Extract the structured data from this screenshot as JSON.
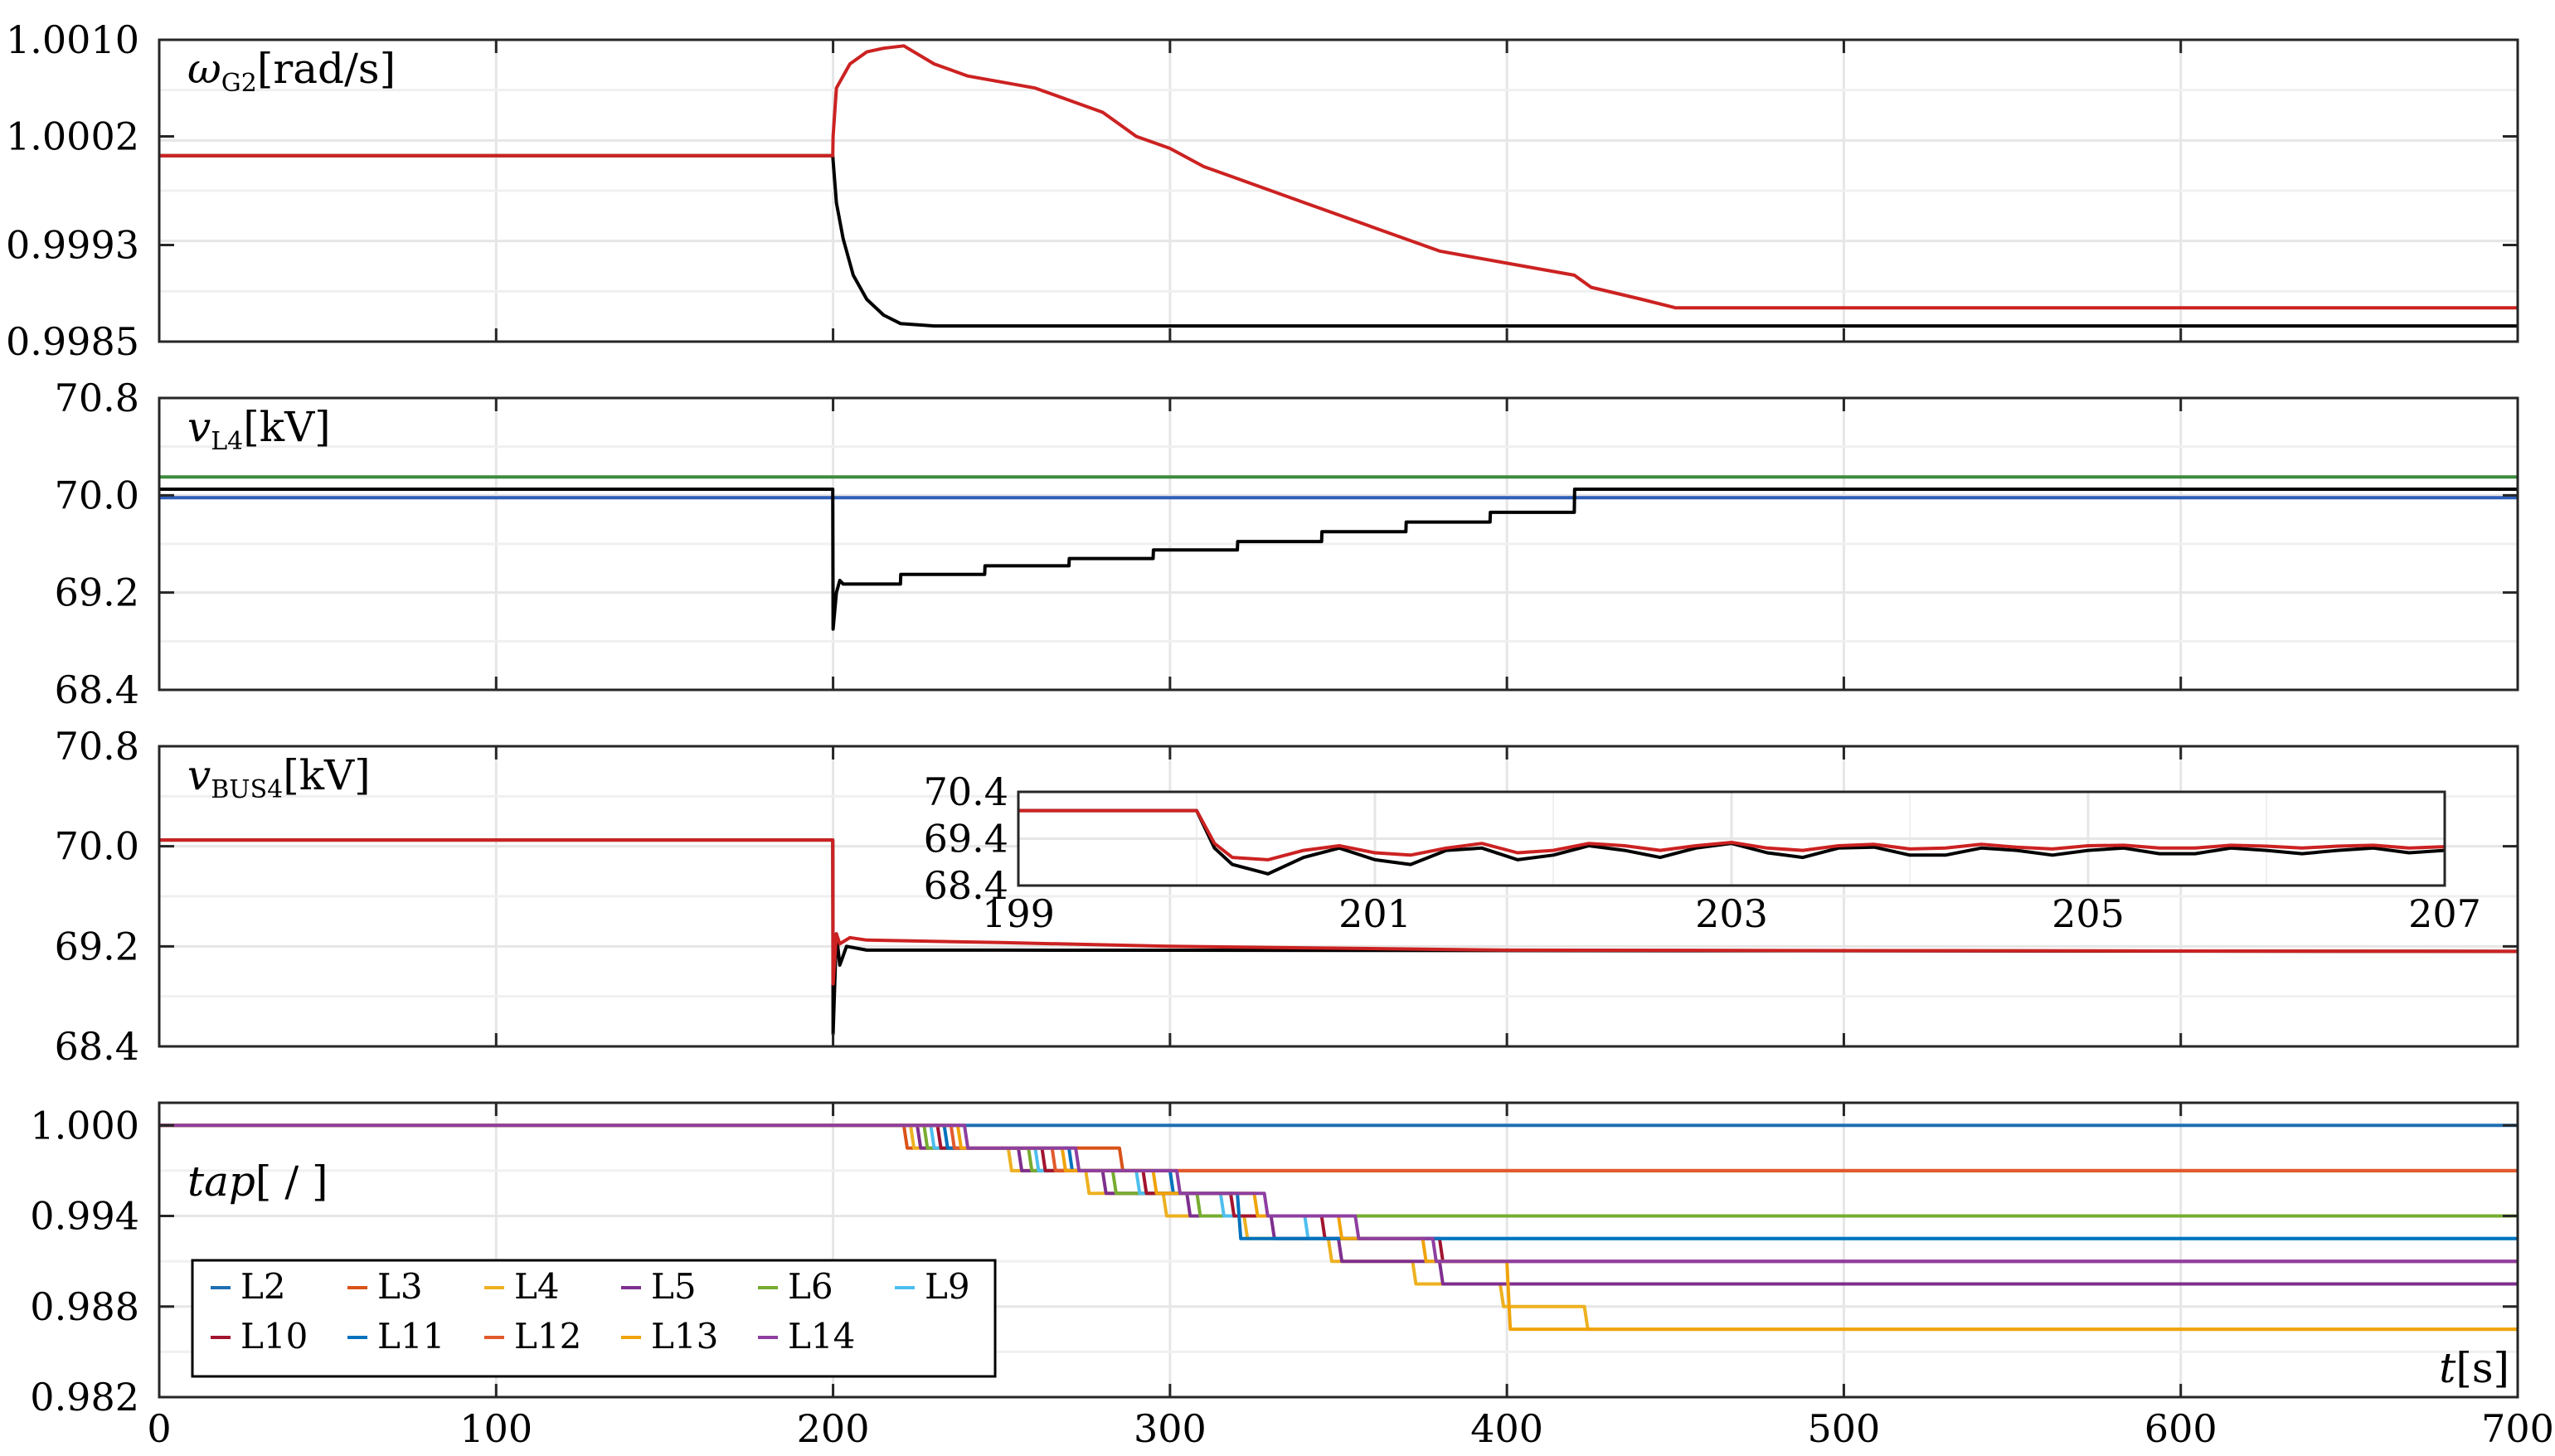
{
  "chart_data": [
    {
      "type": "line",
      "ylabel": "ω",
      "ylabel_sub": "G2",
      "ylabel_unit": "[rad/s]",
      "xlim": [
        0,
        700
      ],
      "ylim": [
        0.9985,
        1.001
      ],
      "yticks": [
        "1.0010",
        "1.0002",
        "0.9993",
        "0.9985"
      ],
      "ytick_values": [
        1.001,
        1.0002,
        0.9993,
        0.9985
      ],
      "grid": true,
      "series": [
        {
          "color": "#000000",
          "x": [
            0,
            199.9,
            200,
            201,
            203,
            206,
            210,
            215,
            220,
            230,
            700
          ],
          "y": [
            1.00004,
            1.00004,
            1.0,
            0.99965,
            0.99935,
            0.99905,
            0.99885,
            0.99872,
            0.99865,
            0.99863,
            0.99863
          ]
        },
        {
          "color": "#cc2222",
          "x": [
            0,
            199.9,
            200,
            201,
            205,
            210,
            215,
            221,
            230,
            240,
            260,
            280,
            285,
            290,
            300,
            310,
            320,
            330,
            340,
            350,
            360,
            370,
            380,
            400,
            420,
            425,
            440,
            450,
            500,
            700
          ],
          "y": [
            1.00004,
            1.00004,
            1.0002,
            1.0006,
            1.0008,
            1.0009,
            1.00093,
            1.00095,
            1.0008,
            1.0007,
            1.0006,
            1.0004,
            1.0003,
            1.0002,
            1.0001,
            0.99995,
            0.99985,
            0.99975,
            0.99965,
            0.99955,
            0.99945,
            0.99935,
            0.99925,
            0.99915,
            0.99905,
            0.99895,
            0.99885,
            0.99878,
            0.99878,
            0.99878
          ]
        }
      ]
    },
    {
      "type": "line",
      "ylabel": "v",
      "ylabel_sub": "L4",
      "ylabel_unit": "[kV]",
      "xlim": [
        0,
        700
      ],
      "ylim": [
        68.4,
        70.8
      ],
      "yticks": [
        "70.8",
        "70.0",
        "69.2",
        "68.4"
      ],
      "ytick_values": [
        70.8,
        70.0,
        69.2,
        68.4
      ],
      "grid": true,
      "series": [
        {
          "color": "#3d8a3d",
          "x": [
            0,
            700
          ],
          "y": [
            70.15,
            70.15
          ]
        },
        {
          "color": "#2f5fb8",
          "x": [
            0,
            700
          ],
          "y": [
            69.98,
            69.98
          ]
        },
        {
          "color": "#000000",
          "x": [
            0,
            199.9,
            200,
            201,
            202,
            203,
            205,
            220,
            220.1,
            245,
            245.1,
            270,
            270.1,
            295,
            295.1,
            320,
            320.1,
            345,
            345.1,
            370,
            370.1,
            395,
            395.1,
            420,
            420.1,
            700
          ],
          "y": [
            70.05,
            70.05,
            68.9,
            69.2,
            69.3,
            69.27,
            69.27,
            69.27,
            69.35,
            69.35,
            69.42,
            69.42,
            69.48,
            69.48,
            69.55,
            69.55,
            69.62,
            69.62,
            69.7,
            69.7,
            69.78,
            69.78,
            69.86,
            69.86,
            70.05,
            70.05
          ]
        }
      ]
    },
    {
      "type": "line",
      "ylabel": "v",
      "ylabel_sub": "BUS4",
      "ylabel_unit": "[kV]",
      "xlim": [
        0,
        700
      ],
      "ylim": [
        68.4,
        70.8
      ],
      "yticks": [
        "70.8",
        "70.0",
        "69.2",
        "68.4"
      ],
      "ytick_values": [
        70.8,
        70.0,
        69.2,
        68.4
      ],
      "grid": true,
      "series": [
        {
          "color": "#000000",
          "x": [
            0,
            199.9,
            200,
            201,
            202,
            204,
            210,
            250,
            700
          ],
          "y": [
            70.05,
            70.05,
            68.5,
            69.3,
            69.05,
            69.2,
            69.17,
            69.17,
            69.16
          ]
        },
        {
          "color": "#cc2222",
          "x": [
            0,
            199.9,
            200,
            201,
            202,
            205,
            210,
            250,
            300,
            400,
            700
          ],
          "y": [
            70.05,
            70.05,
            68.9,
            69.3,
            69.22,
            69.27,
            69.25,
            69.23,
            69.2,
            69.17,
            69.16
          ]
        }
      ],
      "inset": {
        "xlim": [
          199,
          207
        ],
        "ylim": [
          68.4,
          70.4
        ],
        "xticks": [
          "199",
          "201",
          "203",
          "205",
          "207"
        ],
        "xtick_values": [
          199,
          201,
          203,
          205,
          207
        ],
        "yticks": [
          "70.4",
          "69.4",
          "68.4"
        ],
        "ytick_values": [
          70.4,
          69.4,
          68.4
        ],
        "series": [
          {
            "color": "#000000",
            "x": [
              199,
              199.99,
              200.0,
              200.1,
              200.2,
              200.4,
              200.6,
              200.8,
              201.0,
              201.2,
              201.4,
              201.6,
              201.8,
              202.0,
              202.2,
              202.4,
              202.6,
              202.8,
              203.0,
              203.2,
              203.4,
              203.6,
              203.8,
              204.0,
              204.2,
              204.4,
              204.6,
              204.8,
              205.0,
              205.2,
              205.4,
              205.6,
              205.8,
              206.0,
              206.2,
              206.4,
              206.6,
              206.8,
              207.0
            ],
            "y": [
              70.0,
              70.0,
              70.0,
              69.2,
              68.85,
              68.65,
              69.0,
              69.2,
              68.95,
              68.85,
              69.15,
              69.2,
              68.95,
              69.05,
              69.25,
              69.15,
              69.0,
              69.2,
              69.3,
              69.1,
              69.0,
              69.2,
              69.22,
              69.05,
              69.05,
              69.2,
              69.15,
              69.05,
              69.15,
              69.2,
              69.08,
              69.08,
              69.2,
              69.15,
              69.08,
              69.15,
              69.2,
              69.1,
              69.15
            ]
          },
          {
            "color": "#cc2222",
            "x": [
              199,
              199.99,
              200.0,
              200.1,
              200.2,
              200.4,
              200.6,
              200.8,
              201.0,
              201.2,
              201.4,
              201.6,
              201.8,
              202.0,
              202.2,
              202.4,
              202.6,
              202.8,
              203.0,
              203.2,
              203.4,
              203.6,
              203.8,
              204.0,
              204.2,
              204.4,
              204.6,
              204.8,
              205.0,
              205.2,
              205.4,
              205.6,
              205.8,
              206.0,
              206.2,
              206.4,
              206.6,
              206.8,
              207.0
            ],
            "y": [
              70.0,
              70.0,
              70.0,
              69.3,
              69.0,
              68.95,
              69.15,
              69.25,
              69.1,
              69.05,
              69.2,
              69.3,
              69.1,
              69.15,
              69.3,
              69.25,
              69.15,
              69.25,
              69.32,
              69.2,
              69.15,
              69.25,
              69.28,
              69.18,
              69.2,
              69.28,
              69.22,
              69.18,
              69.25,
              69.26,
              69.2,
              69.2,
              69.26,
              69.24,
              69.2,
              69.24,
              69.26,
              69.2,
              69.23
            ]
          }
        ]
      }
    },
    {
      "type": "line",
      "ylabel": "tap",
      "ylabel_unit": "[ / ]",
      "xlabel": "t",
      "xlabel_unit": "[s]",
      "xlim": [
        0,
        700
      ],
      "ylim": [
        0.982,
        1.0015
      ],
      "yticks": [
        "1.000",
        "0.994",
        "0.988",
        "0.982"
      ],
      "ytick_values": [
        1.0,
        0.994,
        0.988,
        0.982
      ],
      "xticks": [
        "0",
        "100",
        "200",
        "300",
        "400",
        "500",
        "600",
        "700"
      ],
      "xtick_values": [
        0,
        100,
        200,
        300,
        400,
        500,
        600,
        700
      ],
      "grid": true,
      "legend": {
        "placement": "bottom-left",
        "columns": 6,
        "entries": [
          "L2",
          "L3",
          "L4",
          "L5",
          "L6",
          "L9",
          "L10",
          "L11",
          "L12",
          "L13",
          "L14"
        ]
      },
      "series": [
        {
          "name": "L2",
          "color": "#1f6fb2",
          "x": [
            0,
            700
          ],
          "y": [
            1.0,
            1.0
          ]
        },
        {
          "name": "L3",
          "color": "#d95319",
          "x": [
            0,
            221,
            222,
            285,
            286,
            700
          ],
          "y": [
            1.0,
            1.0,
            0.9985,
            0.9985,
            0.997,
            0.997
          ]
        },
        {
          "name": "L4",
          "color": "#edb120",
          "x": [
            0,
            223,
            224,
            252,
            253,
            275,
            276,
            298,
            299,
            322,
            323,
            347,
            348,
            372,
            373,
            398,
            399,
            423,
            424,
            700
          ],
          "y": [
            1.0,
            1.0,
            0.9985,
            0.9985,
            0.997,
            0.997,
            0.9955,
            0.9955,
            0.994,
            0.994,
            0.9925,
            0.9925,
            0.991,
            0.991,
            0.9895,
            0.9895,
            0.988,
            0.988,
            0.9865,
            0.9865
          ]
        },
        {
          "name": "L5",
          "color": "#7e2f8e",
          "x": [
            0,
            225,
            226,
            255,
            256,
            280,
            281,
            305,
            306,
            330,
            331,
            350,
            351,
            380,
            381,
            700
          ],
          "y": [
            1.0,
            1.0,
            0.9985,
            0.9985,
            0.997,
            0.997,
            0.9955,
            0.9955,
            0.994,
            0.994,
            0.9925,
            0.9925,
            0.991,
            0.991,
            0.9895,
            0.9895
          ]
        },
        {
          "name": "L6",
          "color": "#77ac30",
          "x": [
            0,
            227,
            228,
            258,
            259,
            283,
            284,
            308,
            309,
            348,
            349,
            700
          ],
          "y": [
            1.0,
            1.0,
            0.9985,
            0.9985,
            0.997,
            0.997,
            0.9955,
            0.9955,
            0.994,
            0.994,
            0.994,
            0.994
          ]
        },
        {
          "name": "L9",
          "color": "#4dbeee",
          "x": [
            0,
            229,
            230,
            260,
            261,
            290,
            291,
            315,
            316,
            340,
            341,
            700
          ],
          "y": [
            1.0,
            1.0,
            0.9985,
            0.9985,
            0.997,
            0.997,
            0.9955,
            0.9955,
            0.994,
            0.994,
            0.9925,
            0.9925
          ]
        },
        {
          "name": "L10",
          "color": "#a2142f",
          "x": [
            0,
            231,
            232,
            262,
            263,
            292,
            293,
            318,
            319,
            345,
            346,
            380,
            381,
            700
          ],
          "y": [
            1.0,
            1.0,
            0.9985,
            0.9985,
            0.997,
            0.997,
            0.9955,
            0.9955,
            0.994,
            0.994,
            0.9925,
            0.9925,
            0.991,
            0.991
          ]
        },
        {
          "name": "L11",
          "color": "#0072bd",
          "x": [
            0,
            233,
            234,
            270,
            271,
            300,
            301,
            320,
            321,
            700
          ],
          "y": [
            1.0,
            1.0,
            0.9985,
            0.9985,
            0.997,
            0.997,
            0.9955,
            0.9955,
            0.9925,
            0.9925
          ]
        },
        {
          "name": "L12",
          "color": "#e2592c",
          "x": [
            0,
            235,
            236,
            265,
            266,
            286,
            287,
            700
          ],
          "y": [
            1.0,
            1.0,
            0.9985,
            0.9985,
            0.997,
            0.997,
            0.997,
            0.997
          ]
        },
        {
          "name": "L13",
          "color": "#f0a30a",
          "x": [
            0,
            237,
            238,
            268,
            269,
            295,
            296,
            325,
            326,
            350,
            351,
            375,
            376,
            400,
            401,
            700
          ],
          "y": [
            1.0,
            1.0,
            0.9985,
            0.9985,
            0.997,
            0.997,
            0.9955,
            0.9955,
            0.994,
            0.994,
            0.9925,
            0.9925,
            0.991,
            0.991,
            0.9865,
            0.9865
          ]
        },
        {
          "name": "L14",
          "color": "#8e3fa0",
          "x": [
            0,
            239,
            240,
            272,
            273,
            302,
            303,
            328,
            329,
            355,
            356,
            378,
            379,
            700
          ],
          "y": [
            1.0,
            1.0,
            0.9985,
            0.9985,
            0.997,
            0.997,
            0.9955,
            0.9955,
            0.994,
            0.994,
            0.9925,
            0.9925,
            0.991,
            0.991
          ]
        }
      ]
    }
  ]
}
